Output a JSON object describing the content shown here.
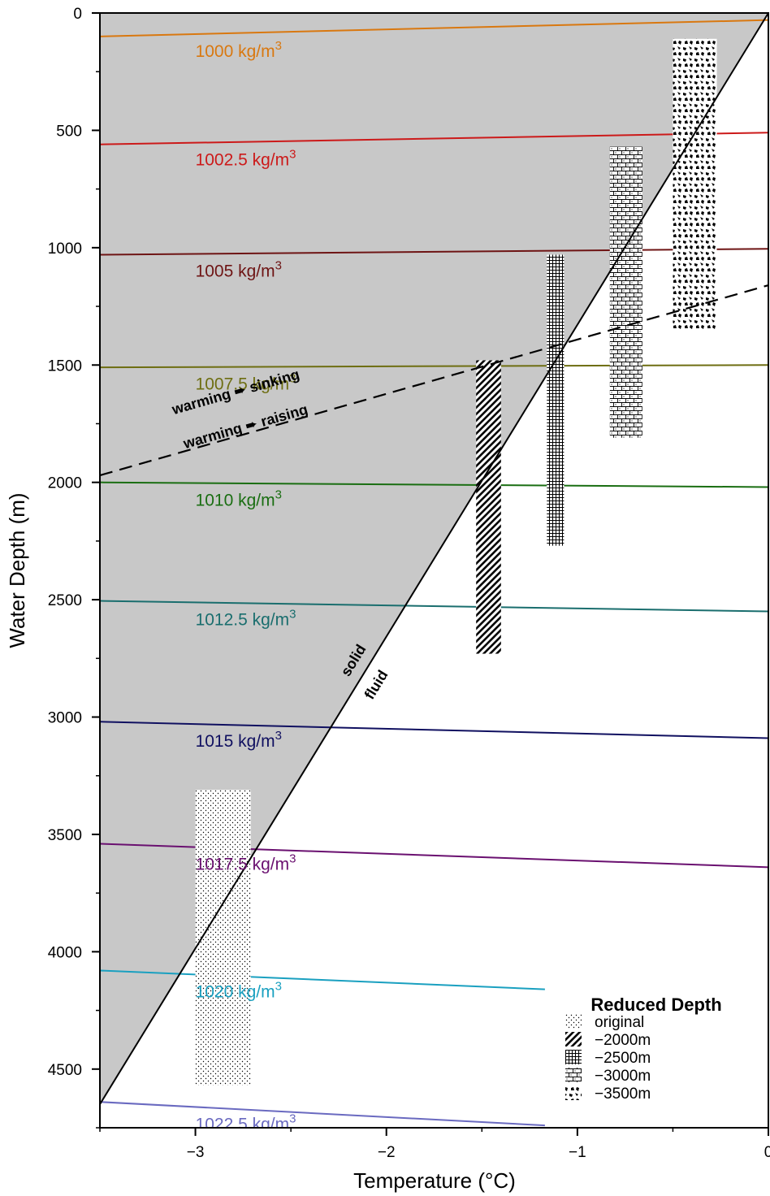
{
  "chart_data": {
    "type": "line",
    "xlabel": "Temperature (°C)",
    "ylabel": "Water Depth (m)",
    "xlim": [
      -3.5,
      0
    ],
    "ylim": [
      4750,
      0
    ],
    "x_ticks": [
      -3,
      -2,
      -1,
      0
    ],
    "x_tick_labels": [
      "−3",
      "−2",
      "−1",
      "0"
    ],
    "y_ticks": [
      0,
      500,
      1000,
      1500,
      2000,
      2500,
      3000,
      3500,
      4000,
      4500
    ],
    "y_tick_labels": [
      "0",
      "500",
      "1000",
      "1500",
      "2000",
      "2500",
      "3000",
      "3500",
      "4000",
      "4500"
    ],
    "region_fill": "#c8c8c8",
    "phase_boundary": {
      "points": [
        [
          0,
          0
        ],
        [
          -3.5,
          4650
        ]
      ],
      "labels": [
        "solid",
        "fluid"
      ]
    },
    "buoyancy_boundary": {
      "points": [
        [
          -3.5,
          1970
        ],
        [
          0,
          1160
        ]
      ],
      "labels": [
        "warming ➨ sinking",
        "warming ➨ raising"
      ]
    },
    "isopycnals": [
      {
        "label": "1000 kg/m",
        "sup": "3",
        "color": "#d97810",
        "points": [
          [
            -3.5,
            100
          ],
          [
            0,
            30
          ]
        ]
      },
      {
        "label": "1002.5 kg/m",
        "sup": "3",
        "color": "#cc1a1a",
        "points": [
          [
            -3.5,
            560
          ],
          [
            0,
            510
          ]
        ]
      },
      {
        "label": "1005 kg/m",
        "sup": "3",
        "color": "#6e1414",
        "points": [
          [
            -3.5,
            1030
          ],
          [
            0,
            1005
          ]
        ]
      },
      {
        "label": "1007.5 kg/m",
        "sup": "3",
        "color": "#6e6e12",
        "points": [
          [
            -3.5,
            1510
          ],
          [
            0,
            1500
          ]
        ]
      },
      {
        "label": "1010 kg/m",
        "sup": "3",
        "color": "#1a6e12",
        "points": [
          [
            -3.5,
            2000
          ],
          [
            0,
            2020
          ]
        ]
      },
      {
        "label": "1012.5 kg/m",
        "sup": "3",
        "color": "#1a6e6e",
        "points": [
          [
            -3.5,
            2505
          ],
          [
            0,
            2550
          ]
        ]
      },
      {
        "label": "1015 kg/m",
        "sup": "3",
        "color": "#101060",
        "points": [
          [
            -3.5,
            3020
          ],
          [
            0,
            3090
          ]
        ]
      },
      {
        "label": "1017.5 kg/m",
        "sup": "3",
        "color": "#6a1070",
        "points": [
          [
            -3.5,
            3540
          ],
          [
            0,
            3640
          ]
        ]
      },
      {
        "label": "1020 kg/m",
        "sup": "3",
        "color": "#1aa0c0",
        "points": [
          [
            -3.5,
            4080
          ],
          [
            -1.17,
            4160
          ]
        ]
      },
      {
        "label": "1022.5 kg/m",
        "sup": "3",
        "color": "#6a6ac0",
        "points": [
          [
            -3.5,
            4640
          ],
          [
            -1.17,
            4740
          ]
        ]
      }
    ],
    "ranges": [
      {
        "name": "original",
        "pattern": "dots",
        "x": [
          -3.0,
          -2.71
        ],
        "y": [
          3310,
          4570
        ]
      },
      {
        "name": "−2000m",
        "pattern": "diagonal",
        "x": [
          -1.53,
          -1.4
        ],
        "y": [
          1480,
          2730
        ]
      },
      {
        "name": "−2500m",
        "pattern": "grid",
        "x": [
          -1.16,
          -1.07
        ],
        "y": [
          1030,
          2270
        ]
      },
      {
        "name": "−3000m",
        "pattern": "brick",
        "x": [
          -0.83,
          -0.66
        ],
        "y": [
          570,
          1810
        ]
      },
      {
        "name": "−3500m",
        "pattern": "blobs",
        "x": [
          -0.5,
          -0.27
        ],
        "y": [
          110,
          1350
        ]
      }
    ],
    "legend": {
      "title": "Reduced Depth",
      "placement": "bottom-right"
    }
  }
}
